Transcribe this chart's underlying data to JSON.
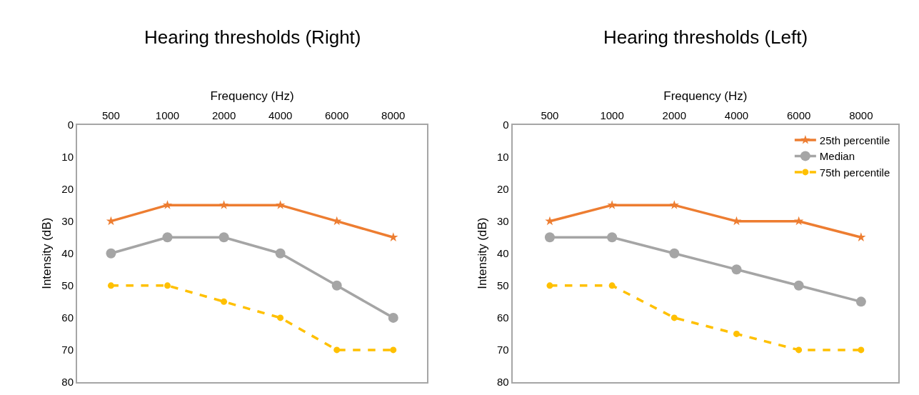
{
  "chart_data": [
    {
      "type": "line",
      "title": "Hearing thresholds (Right)",
      "xlabel": "Frequency (Hz)",
      "ylabel": "Intensity (dB)",
      "categories": [
        "500",
        "1000",
        "2000",
        "4000",
        "6000",
        "8000"
      ],
      "ylim": [
        80,
        0
      ],
      "yticks": [
        0,
        10,
        20,
        30,
        40,
        50,
        60,
        70,
        80
      ],
      "legend": false,
      "series": [
        {
          "color": "#ed7d31",
          "marker": "star",
          "line_style": "solid",
          "values": [
            30,
            25,
            25,
            25,
            30,
            35
          ]
        },
        {
          "color": "#a5a5a5",
          "marker": "circle",
          "line_style": "solid",
          "values": [
            40,
            35,
            35,
            40,
            50,
            60
          ]
        },
        {
          "color": "#ffc000",
          "marker": "circle",
          "line_style": "dashed",
          "values": [
            50,
            50,
            55,
            60,
            70,
            70
          ]
        }
      ]
    },
    {
      "type": "line",
      "title": "Hearing thresholds (Left)",
      "xlabel": "Frequency (Hz)",
      "ylabel": "Intensity (dB)",
      "categories": [
        "500",
        "1000",
        "2000",
        "4000",
        "6000",
        "8000"
      ],
      "ylim": [
        80,
        0
      ],
      "yticks": [
        0,
        10,
        20,
        30,
        40,
        50,
        60,
        70,
        80
      ],
      "legend": "top right",
      "series": [
        {
          "name": "25th percentile",
          "color": "#ed7d31",
          "marker": "star",
          "line_style": "solid",
          "values": [
            30,
            25,
            25,
            30,
            30,
            35
          ]
        },
        {
          "name": "Median",
          "color": "#a5a5a5",
          "marker": "circle",
          "line_style": "solid",
          "values": [
            35,
            35,
            40,
            45,
            50,
            55
          ]
        },
        {
          "name": "75th percentile",
          "color": "#ffc000",
          "marker": "circle",
          "line_style": "dashed",
          "values": [
            50,
            50,
            60,
            65,
            70,
            70
          ]
        }
      ]
    }
  ]
}
